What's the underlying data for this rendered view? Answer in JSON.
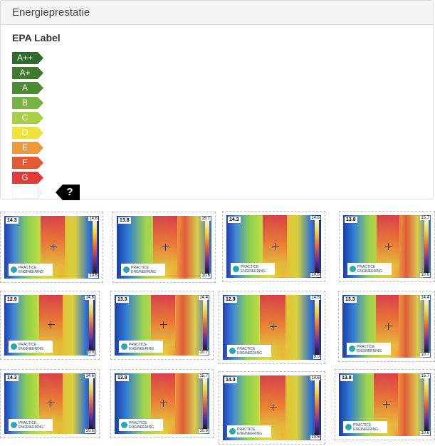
{
  "panel": {
    "title": "Energieprestatie",
    "epa_title": "EPA Label",
    "labels": [
      {
        "text": "A++",
        "color": "#2f6b2c"
      },
      {
        "text": "A+",
        "color": "#3f7a2f"
      },
      {
        "text": "A",
        "color": "#4d8a33"
      },
      {
        "text": "B",
        "color": "#79b244"
      },
      {
        "text": "C",
        "color": "#a9cf45"
      },
      {
        "text": "D",
        "color": "#f0e33d"
      },
      {
        "text": "E",
        "color": "#ef9a3a"
      },
      {
        "text": "F",
        "color": "#e25b35"
      },
      {
        "text": "G",
        "color": "#e43a3a"
      }
    ],
    "unknown_marker": "?"
  },
  "thumbnails": [
    {
      "temp": "14.3",
      "scale_top": "14.6",
      "scale_bottom": "10.6",
      "logo": "PRACTICE ENGINEERING"
    },
    {
      "temp": "13.8",
      "scale_top": "15.7",
      "scale_bottom": "10.6",
      "logo": "PRACTICE ENGINEERING"
    },
    {
      "temp": "14.3",
      "scale_top": "14.6",
      "scale_bottom": "10.6",
      "logo": "PRACTICE ENGINEERING"
    },
    {
      "temp": "13.8",
      "scale_top": "15.7",
      "scale_bottom": "10.6",
      "logo": "PRACTICE ENGINEERING"
    },
    {
      "temp": "12.9",
      "scale_top": "14.6",
      "scale_bottom": "9.0",
      "logo": "PRACTICE ENGINEERING"
    },
    {
      "temp": "13.3",
      "scale_top": "14.4",
      "scale_bottom": "10.7",
      "logo": "PRACTICE ENGINEERING"
    },
    {
      "temp": "12.9",
      "scale_top": "14.6",
      "scale_bottom": "9.0",
      "logo": "PRACTICE ENGINEERING"
    },
    {
      "temp": "13.3",
      "scale_top": "14.4",
      "scale_bottom": "10.7",
      "logo": "PRACTICE ENGINEERING"
    },
    {
      "temp": "14.3",
      "scale_top": "14.6",
      "scale_bottom": "10.6",
      "logo": "PRACTICE ENGINEERING"
    },
    {
      "temp": "13.8",
      "scale_top": "15.7",
      "scale_bottom": "10.6",
      "logo": "PRACTICE ENGINEERING"
    },
    {
      "temp": "14.3",
      "scale_top": "14.6",
      "scale_bottom": "10.6",
      "logo": "PRACTICE ENGINEERING"
    },
    {
      "temp": "13.8",
      "scale_top": "15.7",
      "scale_bottom": "10.6",
      "logo": "PRACTICE ENGINEERING"
    }
  ]
}
